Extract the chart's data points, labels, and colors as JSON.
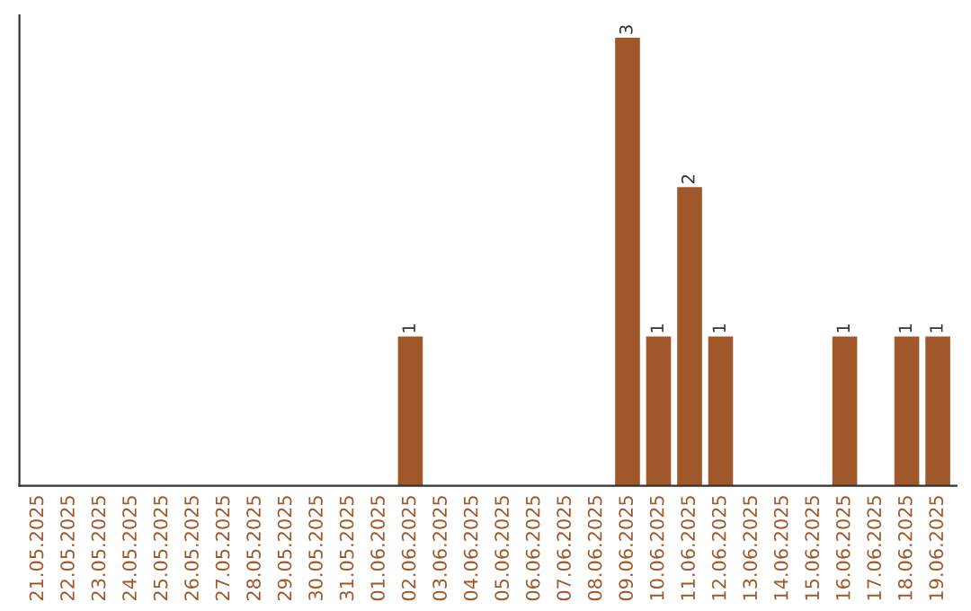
{
  "chart_data": {
    "type": "bar",
    "categories": [
      "21.05.2025",
      "22.05.2025",
      "23.05.2025",
      "24.05.2025",
      "25.05.2025",
      "26.05.2025",
      "27.05.2025",
      "28.05.2025",
      "29.05.2025",
      "30.05.2025",
      "31.05.2025",
      "01.06.2025",
      "02.06.2025",
      "03.06.2025",
      "04.06.2025",
      "05.06.2025",
      "06.06.2025",
      "07.06.2025",
      "08.06.2025",
      "09.06.2025",
      "10.06.2025",
      "11.06.2025",
      "12.06.2025",
      "13.06.2025",
      "14.06.2025",
      "15.06.2025",
      "16.06.2025",
      "17.06.2025",
      "18.06.2025",
      "19.06.2025"
    ],
    "values": [
      null,
      null,
      null,
      null,
      null,
      null,
      null,
      null,
      null,
      null,
      null,
      null,
      1,
      null,
      null,
      null,
      null,
      null,
      null,
      3,
      1,
      2,
      1,
      null,
      null,
      null,
      1,
      null,
      1,
      1
    ],
    "data_labels": true,
    "color": "#a0582a",
    "tick_labels": "x"
  }
}
